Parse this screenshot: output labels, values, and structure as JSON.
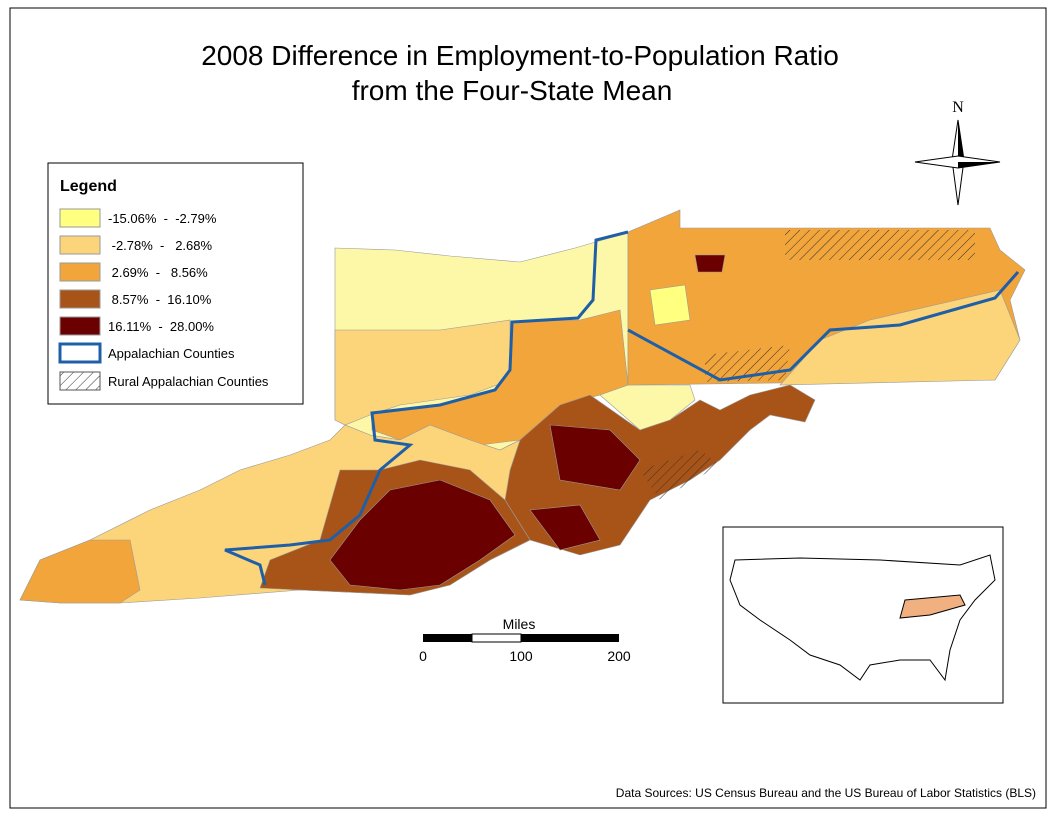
{
  "title": [
    "2008 Difference in Employment-to-Population Ratio",
    "from the Four-State Mean"
  ],
  "legend": {
    "title": "Legend",
    "items": [
      {
        "label": "-15.06%  -  -2.79%",
        "color": "#ffff80"
      },
      {
        "label": " -2.78%  -   2.68%",
        "color": "#fcd57a"
      },
      {
        "label": " 2.69%  -   8.56%",
        "color": "#f2a53a"
      },
      {
        "label": " 8.57%  -  16.10%",
        "color": "#a85418"
      },
      {
        "label": "16.11%  -  28.00%",
        "color": "#6b0000"
      }
    ],
    "appalachian": "Appalachian Counties",
    "rural": "Rural Appalachian Counties"
  },
  "compass": "N",
  "scale": {
    "title": "Miles",
    "ticks": [
      0,
      100,
      200
    ]
  },
  "source": "Data Sources: US Census Bureau and the US Bureau of Labor Statistics (BLS)"
}
